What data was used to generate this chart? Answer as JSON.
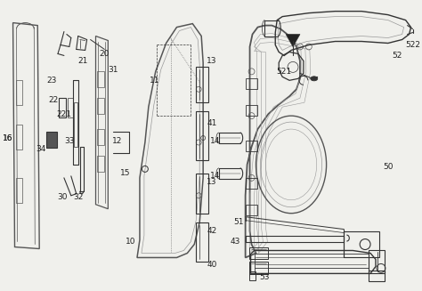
{
  "background_color": "#f0f0ec",
  "line_color": "#555555",
  "dark_line": "#333333",
  "light_line": "#999999",
  "fig_width": 4.74,
  "fig_height": 3.27,
  "dpi": 100
}
